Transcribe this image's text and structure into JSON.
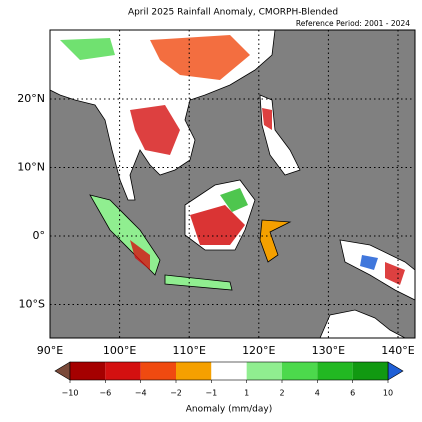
{
  "title": "April 2025 Rainfall Anomaly, CMORPH-Blended",
  "reference": "Reference Period: 2001 - 2024",
  "map": {
    "lat_labels": [
      "20°N",
      "10°N",
      "0°",
      "10°S"
    ],
    "lon_labels": [
      "90°E",
      "100°E",
      "110°E",
      "120°E",
      "130°E",
      "140°E"
    ]
  },
  "colorbar": {
    "label": "Anomaly (mm/day)",
    "ticks": [
      "−10",
      "−6",
      "−4",
      "−2",
      "−1",
      "1",
      "2",
      "4",
      "6",
      "10"
    ],
    "under_color": "#7a4a3a",
    "colors": [
      "#a50000",
      "#d41010",
      "#f04a10",
      "#f5a000",
      "#ffffff",
      "#90ee90",
      "#4cd94c",
      "#22b822",
      "#119911"
    ],
    "over_color": "#1f5fd6"
  }
}
